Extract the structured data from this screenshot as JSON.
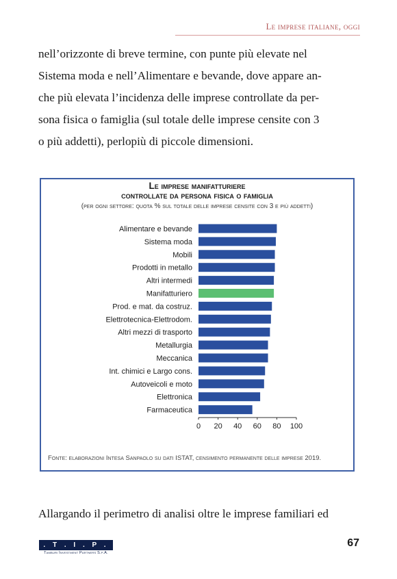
{
  "header": {
    "running_title": "Le imprese italiane, oggi"
  },
  "body": {
    "paragraph1_lines": [
      "nell’orizzonte di breve termine, con punte più elevate nel",
      "Sistema moda e nell’Alimentare e bevande, dove appare an-",
      "che più elevata l’incidenza delle imprese controllate da per-",
      "sona fisica o famiglia (sul totale delle imprese censite con 3",
      "o più addetti), perlopiù di piccole dimensioni."
    ],
    "paragraph2_line": "Allargando il perimetro di analisi oltre le imprese familiari ed"
  },
  "figure": {
    "title_line1": "Le imprese manifatturiere",
    "title_line2": "controllate da persona fisica o famiglia",
    "subtitle": "(per ogni settore: quota % sul totale delle imprese censite con 3 e più addetti)",
    "source": "Fonte: elaborazioni Intesa Sanpaolo su dati ISTAT, censimento permanente delle imprese 2019."
  },
  "chart_data": {
    "type": "bar",
    "orientation": "horizontal",
    "categories": [
      "Alimentare e bevande",
      "Sistema moda",
      "Mobili",
      "Prodotti in metallo",
      "Altri intermedi",
      "Manifatturiero",
      "Prod. e mat. da costruz.",
      "Elettrotecnica-Elettrodom.",
      "Altri mezzi di trasporto",
      "Metallurgia",
      "Meccanica",
      "Int. chimici e Largo cons.",
      "Autoveicoli e moto",
      "Elettronica",
      "Farmaceutica"
    ],
    "values": [
      80,
      79,
      78,
      78,
      77,
      77,
      75,
      74,
      73,
      71,
      71,
      68,
      67,
      63,
      55
    ],
    "highlight_category": "Manifatturiero",
    "colors": {
      "bar": "#2a4f9e",
      "highlight": "#5cbf72"
    },
    "xlim": [
      0,
      100
    ],
    "xticks": [
      "0",
      "20",
      "40",
      "60",
      "80",
      "100"
    ],
    "grid": false,
    "legend": "none"
  },
  "footer": {
    "logo_text": ". T . I . P .",
    "logo_subtext": "Tamburi Investment Partners S.p.A.",
    "page_number": "67"
  }
}
